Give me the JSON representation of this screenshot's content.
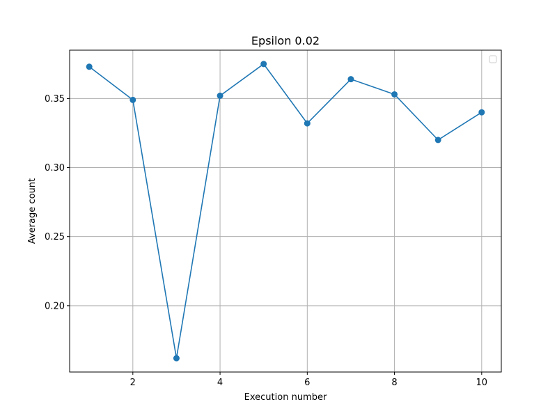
{
  "chart_data": {
    "type": "line",
    "title": "Epsilon 0.02",
    "xlabel": "Execution number",
    "ylabel": "Average count",
    "x": [
      1,
      2,
      3,
      4,
      5,
      6,
      7,
      8,
      9,
      10
    ],
    "series": [
      {
        "values": [
          0.373,
          0.349,
          0.162,
          0.352,
          0.375,
          0.332,
          0.364,
          0.353,
          0.32,
          0.34
        ],
        "color": "#1f77b4",
        "marker": "circle"
      }
    ],
    "xlim": [
      0.55,
      10.45
    ],
    "ylim": [
      0.152,
      0.385
    ],
    "xticks": [
      2,
      4,
      6,
      8,
      10
    ],
    "yticks": [
      0.2,
      0.25,
      0.3,
      0.35
    ],
    "ytick_labels": [
      "0.20",
      "0.25",
      "0.30",
      "0.35"
    ],
    "xtick_labels": [
      "2",
      "4",
      "6",
      "8",
      "10"
    ],
    "grid": true,
    "legend": "top-right (empty)"
  }
}
